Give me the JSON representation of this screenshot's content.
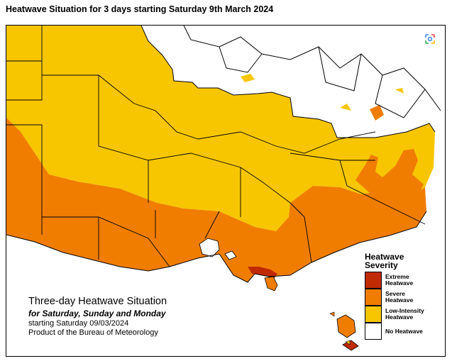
{
  "header": {
    "title": "Heatwave Situation for 3 days starting Saturday 9th March 2024"
  },
  "toolbar": {
    "lens_icon": "google-lens-icon"
  },
  "caption": {
    "title": "Three-day Heatwave Situation",
    "subtitle": "for Saturday, Sunday and Monday",
    "date_line": "starting Saturday 09/03/2024",
    "source_line": "Product of the Bureau of Meteorology"
  },
  "legend": {
    "title_line1": "Heatwave",
    "title_line2": "Severity",
    "items": [
      {
        "line1": "Extreme",
        "line2": "Heatwave",
        "color": "#c02a00"
      },
      {
        "line1": "Severe",
        "line2": "Heatwave",
        "color": "#f07d00"
      },
      {
        "line1": "Low-Intensity",
        "line2": "Heatwave",
        "color": "#f7c600"
      },
      {
        "line1": "No Heatwave",
        "line2": "",
        "color": "#ffffff"
      }
    ]
  },
  "map": {
    "colors": {
      "extreme": "#c02a00",
      "severe": "#f07d00",
      "low": "#f7c600",
      "none": "#ffffff",
      "border": "#000000"
    }
  }
}
